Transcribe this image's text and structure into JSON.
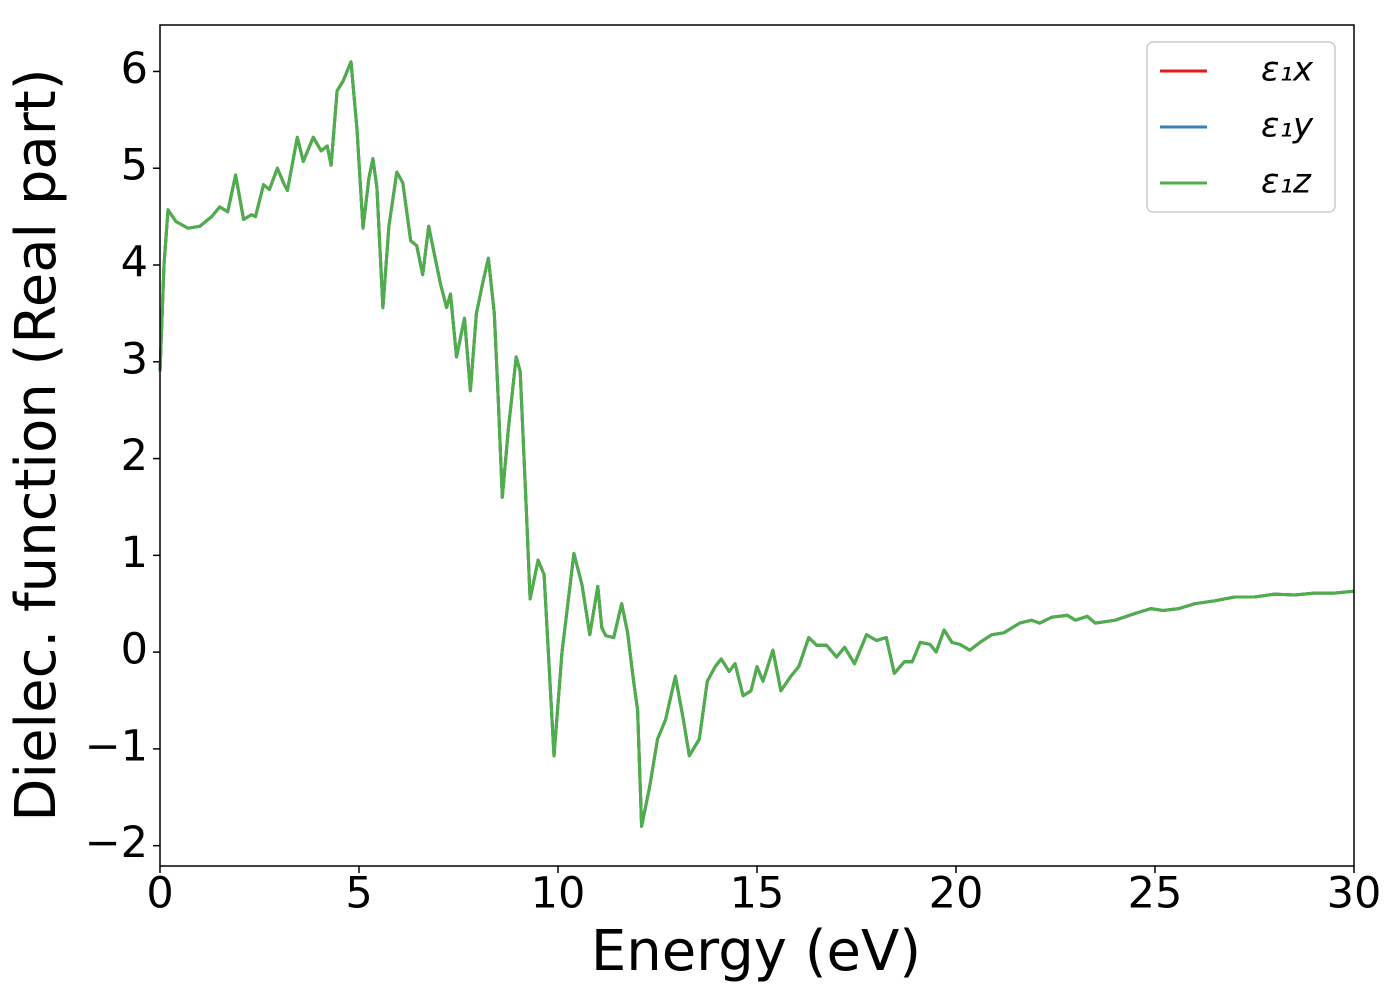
{
  "chart_data": {
    "type": "line",
    "xlabel": "Energy (eV)",
    "ylabel": "Dielec. function (Real part)",
    "xlim": [
      0,
      30
    ],
    "ylim": [
      -2.21,
      6.48
    ],
    "xticks": [
      0,
      5,
      10,
      15,
      20,
      25,
      30
    ],
    "yticks": [
      {
        "value": -2,
        "label": "−2"
      },
      {
        "value": -1,
        "label": "−1"
      },
      0,
      1,
      2,
      3,
      4,
      5,
      6
    ],
    "legend": "upper right",
    "x": [
      0,
      0.1,
      0.2,
      0.4,
      0.7,
      1.0,
      1.3,
      1.5,
      1.7,
      1.9,
      2.1,
      2.3,
      2.4,
      2.6,
      2.75,
      2.95,
      3.1,
      3.2,
      3.45,
      3.6,
      3.85,
      4.05,
      4.2,
      4.3,
      4.45,
      4.6,
      4.8,
      4.95,
      5.1,
      5.25,
      5.35,
      5.45,
      5.6,
      5.75,
      5.95,
      6.1,
      6.3,
      6.45,
      6.6,
      6.75,
      6.9,
      7.05,
      7.2,
      7.3,
      7.45,
      7.65,
      7.8,
      7.95,
      8.1,
      8.25,
      8.4,
      8.5,
      8.6,
      8.75,
      8.95,
      9.05,
      9.2,
      9.3,
      9.5,
      9.65,
      9.9,
      10.1,
      10.4,
      10.6,
      10.8,
      11.0,
      11.1,
      11.2,
      11.4,
      11.6,
      11.75,
      11.9,
      12.0,
      12.1,
      12.3,
      12.5,
      12.7,
      12.95,
      13.15,
      13.3,
      13.55,
      13.75,
      13.95,
      14.1,
      14.3,
      14.45,
      14.65,
      14.85,
      15.0,
      15.15,
      15.4,
      15.6,
      15.85,
      16.05,
      16.3,
      16.5,
      16.75,
      17.0,
      17.2,
      17.45,
      17.75,
      18.0,
      18.25,
      18.45,
      18.7,
      18.9,
      19.1,
      19.35,
      19.5,
      19.7,
      19.9,
      20.1,
      20.35,
      20.6,
      20.9,
      21.2,
      21.6,
      21.9,
      22.1,
      22.4,
      22.8,
      23.0,
      23.3,
      23.5,
      24.0,
      24.5,
      24.9,
      25.2,
      25.6,
      26.0,
      26.5,
      27.0,
      27.5,
      28.0,
      28.5,
      29.0,
      29.5,
      30.0
    ],
    "series": [
      {
        "name": "ε₁x",
        "color": "#e41a1c",
        "values": [
          2.9,
          4.0,
          4.57,
          4.45,
          4.38,
          4.4,
          4.5,
          4.6,
          4.55,
          4.93,
          4.47,
          4.52,
          4.5,
          4.83,
          4.78,
          5.0,
          4.85,
          4.77,
          5.32,
          5.07,
          5.32,
          5.18,
          5.23,
          5.03,
          5.8,
          5.9,
          6.1,
          5.4,
          4.38,
          4.9,
          5.1,
          4.8,
          3.56,
          4.4,
          4.96,
          4.85,
          4.25,
          4.2,
          3.9,
          4.4,
          4.1,
          3.8,
          3.56,
          3.7,
          3.05,
          3.45,
          2.7,
          3.5,
          3.8,
          4.07,
          3.5,
          2.6,
          1.6,
          2.3,
          3.05,
          2.9,
          1.5,
          0.55,
          0.95,
          0.8,
          -1.07,
          0.0,
          1.02,
          0.7,
          0.18,
          0.68,
          0.25,
          0.17,
          0.15,
          0.5,
          0.2,
          -0.3,
          -0.6,
          -1.8,
          -1.4,
          -0.9,
          -0.7,
          -0.25,
          -0.7,
          -1.07,
          -0.9,
          -0.3,
          -0.15,
          -0.07,
          -0.2,
          -0.12,
          -0.45,
          -0.4,
          -0.15,
          -0.3,
          0.02,
          -0.4,
          -0.25,
          -0.15,
          0.15,
          0.07,
          0.07,
          -0.05,
          0.05,
          -0.12,
          0.18,
          0.12,
          0.15,
          -0.22,
          -0.1,
          -0.1,
          0.1,
          0.08,
          0.0,
          0.23,
          0.1,
          0.08,
          0.02,
          0.1,
          0.18,
          0.2,
          0.3,
          0.33,
          0.3,
          0.36,
          0.38,
          0.33,
          0.37,
          0.3,
          0.33,
          0.4,
          0.45,
          0.43,
          0.45,
          0.5,
          0.53,
          0.57,
          0.57,
          0.6,
          0.59,
          0.61,
          0.61,
          0.63
        ]
      },
      {
        "name": "ε₁y",
        "color": "#377eb8",
        "values": [
          2.9,
          4.0,
          4.57,
          4.45,
          4.38,
          4.4,
          4.5,
          4.6,
          4.55,
          4.93,
          4.47,
          4.52,
          4.5,
          4.83,
          4.78,
          5.0,
          4.85,
          4.77,
          5.32,
          5.07,
          5.32,
          5.18,
          5.23,
          5.03,
          5.8,
          5.9,
          6.1,
          5.4,
          4.38,
          4.9,
          5.1,
          4.8,
          3.56,
          4.4,
          4.96,
          4.85,
          4.25,
          4.2,
          3.9,
          4.4,
          4.1,
          3.8,
          3.56,
          3.7,
          3.05,
          3.45,
          2.7,
          3.5,
          3.8,
          4.07,
          3.5,
          2.6,
          1.6,
          2.3,
          3.05,
          2.9,
          1.5,
          0.55,
          0.95,
          0.8,
          -1.07,
          0.0,
          1.02,
          0.7,
          0.18,
          0.68,
          0.25,
          0.17,
          0.15,
          0.5,
          0.2,
          -0.3,
          -0.6,
          -1.8,
          -1.4,
          -0.9,
          -0.7,
          -0.25,
          -0.7,
          -1.07,
          -0.9,
          -0.3,
          -0.15,
          -0.07,
          -0.2,
          -0.12,
          -0.45,
          -0.4,
          -0.15,
          -0.3,
          0.02,
          -0.4,
          -0.25,
          -0.15,
          0.15,
          0.07,
          0.07,
          -0.05,
          0.05,
          -0.12,
          0.18,
          0.12,
          0.15,
          -0.22,
          -0.1,
          -0.1,
          0.1,
          0.08,
          0.0,
          0.23,
          0.1,
          0.08,
          0.02,
          0.1,
          0.18,
          0.2,
          0.3,
          0.33,
          0.3,
          0.36,
          0.38,
          0.33,
          0.37,
          0.3,
          0.33,
          0.4,
          0.45,
          0.43,
          0.45,
          0.5,
          0.53,
          0.57,
          0.57,
          0.6,
          0.59,
          0.61,
          0.61,
          0.63
        ]
      },
      {
        "name": "ε₁z",
        "color": "#4daf4a",
        "values": [
          2.9,
          4.0,
          4.57,
          4.45,
          4.38,
          4.4,
          4.5,
          4.6,
          4.55,
          4.93,
          4.47,
          4.52,
          4.5,
          4.83,
          4.78,
          5.0,
          4.85,
          4.77,
          5.32,
          5.07,
          5.32,
          5.18,
          5.23,
          5.03,
          5.8,
          5.9,
          6.1,
          5.4,
          4.38,
          4.9,
          5.1,
          4.8,
          3.56,
          4.4,
          4.96,
          4.85,
          4.25,
          4.2,
          3.9,
          4.4,
          4.1,
          3.8,
          3.56,
          3.7,
          3.05,
          3.45,
          2.7,
          3.5,
          3.8,
          4.07,
          3.5,
          2.6,
          1.6,
          2.3,
          3.05,
          2.9,
          1.5,
          0.55,
          0.95,
          0.8,
          -1.07,
          0.0,
          1.02,
          0.7,
          0.18,
          0.68,
          0.25,
          0.17,
          0.15,
          0.5,
          0.2,
          -0.3,
          -0.6,
          -1.8,
          -1.4,
          -0.9,
          -0.7,
          -0.25,
          -0.7,
          -1.07,
          -0.9,
          -0.3,
          -0.15,
          -0.07,
          -0.2,
          -0.12,
          -0.45,
          -0.4,
          -0.15,
          -0.3,
          0.02,
          -0.4,
          -0.25,
          -0.15,
          0.15,
          0.07,
          0.07,
          -0.05,
          0.05,
          -0.12,
          0.18,
          0.12,
          0.15,
          -0.22,
          -0.1,
          -0.1,
          0.1,
          0.08,
          0.0,
          0.23,
          0.1,
          0.08,
          0.02,
          0.1,
          0.18,
          0.2,
          0.3,
          0.33,
          0.3,
          0.36,
          0.38,
          0.33,
          0.37,
          0.3,
          0.33,
          0.4,
          0.45,
          0.43,
          0.45,
          0.5,
          0.53,
          0.57,
          0.57,
          0.6,
          0.59,
          0.61,
          0.61,
          0.63
        ]
      }
    ]
  }
}
